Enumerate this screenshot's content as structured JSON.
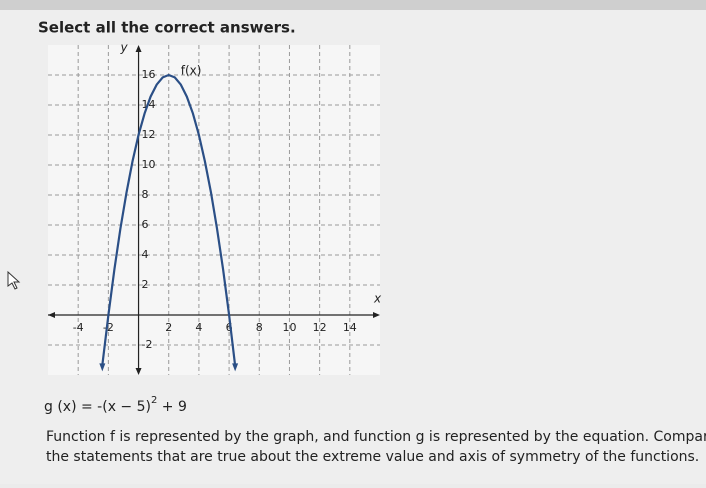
{
  "instruction": "Select all the correct answers.",
  "chart_data": {
    "type": "line",
    "title": "f(x)",
    "x_label": "x",
    "y_label": "y",
    "x": [
      -2.4,
      -2,
      -1.6,
      -1.2,
      -0.8,
      -0.4,
      0,
      0.4,
      0.8,
      1.2,
      1.6,
      2,
      2.4,
      2.8,
      3.2,
      3.6,
      4,
      4.4,
      4.8,
      5.2,
      5.6,
      6,
      6.4
    ],
    "series": [
      {
        "name": "f(x)",
        "color": "#2b4f86",
        "values": [
          -3.36,
          0,
          3.04,
          5.76,
          8.16,
          10.24,
          12,
          13.44,
          14.56,
          15.36,
          15.84,
          16,
          15.84,
          15.36,
          14.56,
          13.44,
          12,
          10.24,
          8.16,
          5.76,
          3.04,
          0,
          -3.36
        ]
      }
    ],
    "xlim": [
      -6,
      16
    ],
    "ylim": [
      -4,
      18
    ],
    "xticks": [
      -4,
      -2,
      2,
      4,
      6,
      8,
      10,
      12,
      14
    ],
    "yticks": [
      -2,
      2,
      4,
      6,
      8,
      10,
      12,
      14,
      16
    ],
    "grid": true
  },
  "equation": {
    "lhs": "g (x) = -(x − 5)",
    "exponent": "2",
    "rest": " + 9"
  },
  "question": [
    "Function f is represented by the graph, and function g is represented by the equation. Compare the",
    "the statements that are true about the extreme value and axis of symmetry of the functions."
  ]
}
